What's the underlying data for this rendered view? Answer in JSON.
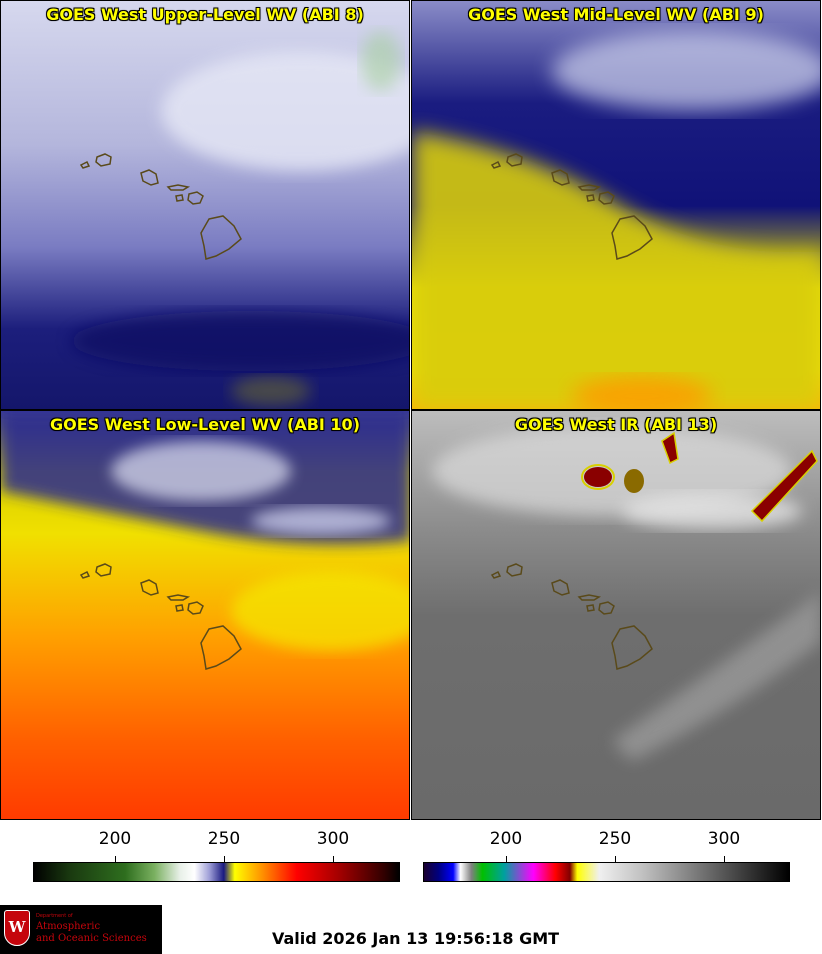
{
  "panels": {
    "upper": {
      "title": "GOES West Upper-Level WV (ABI 8)"
    },
    "mid": {
      "title": "GOES West Mid-Level WV (ABI 9)"
    },
    "low": {
      "title": "GOES West Low-Level WV (ABI 10)"
    },
    "ir": {
      "title": "GOES West IR (ABI 13)"
    }
  },
  "colorbars": {
    "wv": {
      "ticks": [
        "200",
        "250",
        "300"
      ]
    },
    "ir": {
      "ticks": [
        "200",
        "250",
        "300"
      ]
    }
  },
  "logo": {
    "department": "Department of",
    "line1": "Atmospheric",
    "line2": "and Oceanic Sciences",
    "mark": "W"
  },
  "valid_time": "Valid 2026 Jan 13 19:56:18 GMT"
}
